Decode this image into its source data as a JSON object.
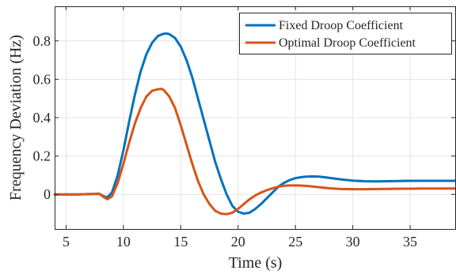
{
  "chart_data": {
    "type": "line",
    "title": "",
    "xlabel": "Time (s)",
    "ylabel": "Frequency Deviation (Hz)",
    "xlim": [
      4.0,
      39.0
    ],
    "ylim": [
      -0.18,
      0.98
    ],
    "xticks": [
      5,
      10,
      15,
      20,
      25,
      30,
      35
    ],
    "yticks": [
      0,
      0.2,
      0.4,
      0.6,
      0.8
    ],
    "xtick_labels": [
      "5",
      "10",
      "15",
      "20",
      "25",
      "30",
      "35"
    ],
    "ytick_labels": [
      "0",
      "0.2",
      "0.4",
      "0.6",
      "0.8"
    ],
    "grid": true,
    "legend_position": "top-right",
    "series": [
      {
        "name": "Fixed Droop Coefficient",
        "color": "#0072BD",
        "x": [
          4,
          6,
          7.9,
          8.3,
          8.6,
          9,
          9.5,
          10,
          10.5,
          11,
          11.5,
          12,
          12.5,
          13,
          13.5,
          13.8,
          14,
          14.5,
          15,
          15.5,
          16,
          16.5,
          17,
          17.5,
          18,
          18.5,
          19,
          19.5,
          20,
          20.5,
          21,
          21.5,
          22,
          22.5,
          23,
          23.5,
          24,
          24.5,
          25,
          25.5,
          26,
          26.5,
          27,
          27.5,
          28,
          29,
          30,
          31,
          32,
          33,
          34,
          35,
          36,
          37,
          38,
          39
        ],
        "y": [
          0,
          0,
          0.003,
          -0.01,
          -0.015,
          0.01,
          0.1,
          0.23,
          0.38,
          0.52,
          0.64,
          0.73,
          0.79,
          0.825,
          0.837,
          0.838,
          0.835,
          0.815,
          0.77,
          0.7,
          0.61,
          0.5,
          0.39,
          0.28,
          0.17,
          0.08,
          0.0,
          -0.06,
          -0.09,
          -0.1,
          -0.095,
          -0.075,
          -0.05,
          -0.02,
          0.01,
          0.04,
          0.06,
          0.075,
          0.085,
          0.09,
          0.093,
          0.094,
          0.093,
          0.09,
          0.086,
          0.078,
          0.072,
          0.069,
          0.068,
          0.069,
          0.07,
          0.071,
          0.071,
          0.071,
          0.071,
          0.071
        ]
      },
      {
        "name": "Optimal Droop Coefficient",
        "color": "#D95319",
        "x": [
          4,
          6,
          7.9,
          8.3,
          8.6,
          9,
          9.5,
          10,
          10.5,
          11,
          11.5,
          12,
          12.5,
          13,
          13.3,
          13.5,
          14,
          14.5,
          15,
          15.5,
          16,
          16.5,
          17,
          17.5,
          18,
          18.5,
          19,
          19.5,
          20,
          20.5,
          21,
          21.5,
          22,
          22.5,
          23,
          23.5,
          24,
          24.5,
          25,
          25.5,
          26,
          27,
          28,
          29,
          30,
          31,
          32,
          33,
          34,
          35,
          36,
          37,
          38,
          39
        ],
        "y": [
          0,
          0,
          0.004,
          -0.015,
          -0.025,
          -0.01,
          0.06,
          0.16,
          0.27,
          0.37,
          0.45,
          0.51,
          0.54,
          0.548,
          0.55,
          0.545,
          0.51,
          0.45,
          0.36,
          0.26,
          0.16,
          0.07,
          0.0,
          -0.05,
          -0.085,
          -0.1,
          -0.103,
          -0.095,
          -0.075,
          -0.05,
          -0.025,
          -0.005,
          0.01,
          0.022,
          0.032,
          0.04,
          0.045,
          0.047,
          0.047,
          0.046,
          0.044,
          0.038,
          0.032,
          0.028,
          0.027,
          0.027,
          0.028,
          0.029,
          0.03,
          0.03,
          0.031,
          0.031,
          0.031,
          0.031
        ]
      }
    ]
  }
}
